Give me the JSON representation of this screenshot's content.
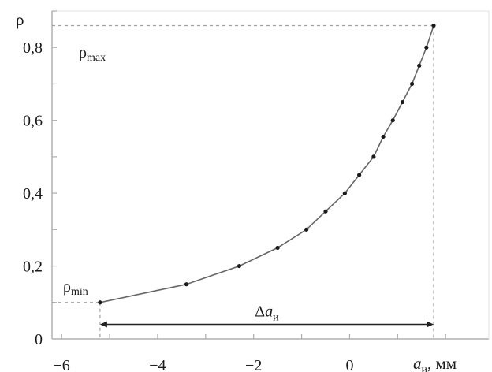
{
  "chart_data": {
    "type": "line",
    "title": "",
    "ylabel": "ρ",
    "xlabel_main": "a",
    "xlabel_sub": "и",
    "xlabel_unit": ", мм",
    "xlim": [
      -6.2,
      2.9
    ],
    "ylim": [
      0,
      0.9
    ],
    "xticks": [
      -6,
      -4,
      -2,
      0
    ],
    "xtick_labels": [
      "−6",
      "−4",
      "−2",
      "0"
    ],
    "yticks": [
      0,
      0.2,
      0.4,
      0.6,
      0.8
    ],
    "ytick_labels": [
      "0",
      "0,2",
      "0,4",
      "0,6",
      "0,8"
    ],
    "grid": false,
    "series": [
      {
        "x": [
          -5.2,
          -3.4,
          -2.3,
          -1.5,
          -0.9,
          -0.5,
          -0.1,
          0.2,
          0.5,
          0.7,
          0.9,
          1.1,
          1.3,
          1.45,
          1.6,
          1.75
        ],
        "y": [
          0.1,
          0.15,
          0.2,
          0.25,
          0.3,
          0.35,
          0.4,
          0.45,
          0.5,
          0.555,
          0.6,
          0.65,
          0.7,
          0.75,
          0.8,
          0.86
        ]
      }
    ],
    "annotations": {
      "rho_max": {
        "main": "ρ",
        "sub": "max",
        "y": 0.86
      },
      "rho_min": {
        "main": "ρ",
        "sub": "min",
        "y": 0.1
      },
      "delta": {
        "prefix": "Δ",
        "main": "a",
        "sub": "и",
        "x_from": -5.2,
        "x_to": 1.75,
        "y": 0.04
      }
    },
    "colors": {
      "line": "#666666",
      "marker": "#1a1a1a",
      "axis": "#b0b0b0",
      "dashed": "#a0a0a0",
      "arrow": "#222222"
    }
  }
}
